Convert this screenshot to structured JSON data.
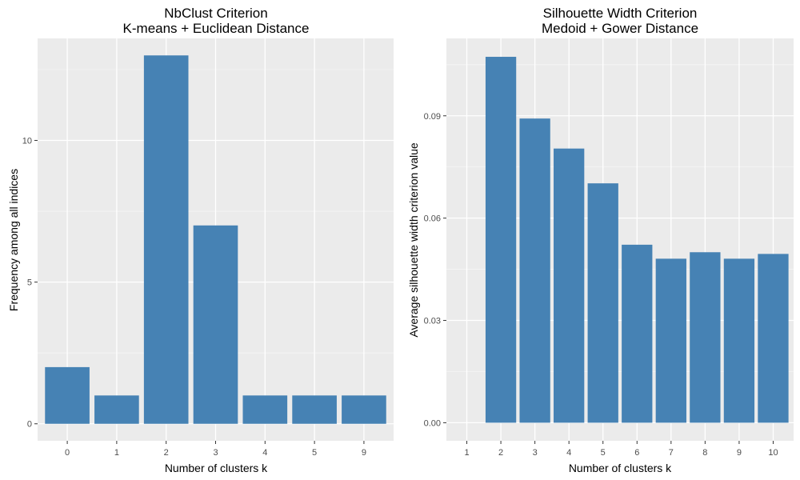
{
  "colors": {
    "panel_background": "#ebebeb",
    "grid_major": "#ffffff",
    "grid_minor": "#f5f5f5",
    "bar_fill": "#4682b4",
    "tick_mark": "#333333"
  },
  "chart_data": [
    {
      "type": "bar",
      "title": "NbClust Criterion",
      "subtitle": "K-means + Euclidean Distance",
      "xlabel": "Number of clusters k",
      "ylabel": "Frequency among all indices",
      "categories": [
        "0",
        "1",
        "2",
        "3",
        "4",
        "5",
        "9"
      ],
      "values": [
        2,
        1,
        13,
        7,
        1,
        1,
        1
      ],
      "ylim": [
        -0.6,
        13.6
      ],
      "yticks": [
        0,
        5,
        10
      ],
      "ytick_labels": [
        "0",
        "5",
        "10"
      ],
      "grid": true
    },
    {
      "type": "bar",
      "title": "Silhouette Width Criterion",
      "subtitle": "Medoid + Gower Distance",
      "xlabel": "Number of clusters k",
      "ylabel": "Average silhouette width criterion value",
      "categories": [
        "1",
        "2",
        "3",
        "4",
        "5",
        "6",
        "7",
        "8",
        "9",
        "10"
      ],
      "values": [
        0,
        0.1073,
        0.0892,
        0.0804,
        0.0702,
        0.0522,
        0.0481,
        0.05,
        0.0481,
        0.0495
      ],
      "ylim": [
        -0.0053,
        0.1127
      ],
      "yticks": [
        0,
        0.03,
        0.06,
        0.09
      ],
      "ytick_labels": [
        "0.00",
        "0.03",
        "0.06",
        "0.09"
      ],
      "grid": true
    }
  ]
}
